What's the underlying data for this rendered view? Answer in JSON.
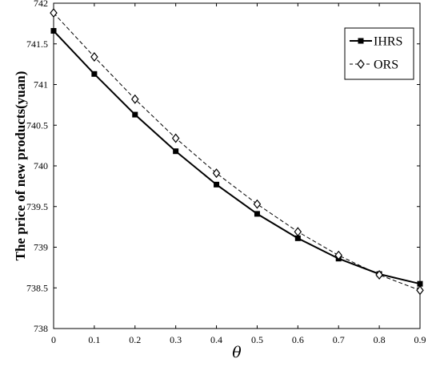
{
  "chart_data": {
    "type": "line",
    "title": "",
    "xlabel": "θ",
    "ylabel": "The price of new products(yuan)",
    "xlim": [
      0,
      0.9
    ],
    "ylim": [
      738,
      742
    ],
    "x_ticks": [
      "0",
      "0.1",
      "0.2",
      "0.3",
      "0.4",
      "0.5",
      "0.6",
      "0.7",
      "0.8",
      "0.9"
    ],
    "y_ticks": [
      "738",
      "738.5",
      "739",
      "739.5",
      "740",
      "740.5",
      "741",
      "741.5",
      "742"
    ],
    "x": [
      0,
      0.1,
      0.2,
      0.3,
      0.4,
      0.5,
      0.6,
      0.7,
      0.8,
      0.9
    ],
    "grid": false,
    "legend_position": "top-right",
    "series": [
      {
        "name": "IHRS",
        "style": "solid",
        "marker": "filled-square",
        "values": [
          741.66,
          741.13,
          740.63,
          740.18,
          739.77,
          739.41,
          739.11,
          738.86,
          738.67,
          738.55
        ]
      },
      {
        "name": "ORS",
        "style": "dashed",
        "marker": "open-diamond",
        "values": [
          741.88,
          741.34,
          740.82,
          740.34,
          739.91,
          739.53,
          739.19,
          738.9,
          738.66,
          738.47
        ]
      }
    ]
  }
}
